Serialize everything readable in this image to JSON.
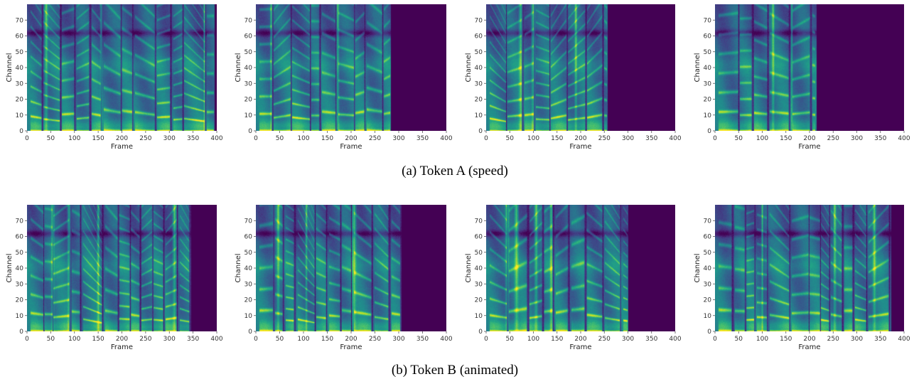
{
  "chart_data": {
    "type": "heatmap",
    "colormap": "viridis",
    "x_ticks": [
      0,
      50,
      100,
      150,
      200,
      250,
      300,
      350,
      400
    ],
    "y_ticks": [
      0,
      10,
      20,
      30,
      40,
      50,
      60,
      70
    ],
    "xlim": [
      0,
      400
    ],
    "ylim": [
      0,
      80
    ],
    "grid": false,
    "rows": [
      {
        "caption": "(a)  Token A (speed)",
        "panels": [
          {
            "xlabel": "Frame",
            "ylabel": "Channel",
            "content_end_frame": 395,
            "seed": 11
          },
          {
            "xlabel": "Frame",
            "ylabel": "Channel",
            "content_end_frame": 283,
            "seed": 23
          },
          {
            "xlabel": "Frame",
            "ylabel": "Channel",
            "content_end_frame": 257,
            "seed": 37
          },
          {
            "xlabel": "Frame",
            "ylabel": "Channel",
            "content_end_frame": 214,
            "seed": 51
          }
        ]
      },
      {
        "caption": "(b)  Token B (animated)",
        "panels": [
          {
            "xlabel": "Frame",
            "ylabel": "Channel",
            "content_end_frame": 346,
            "seed": 67
          },
          {
            "xlabel": "Frame",
            "ylabel": "Channel",
            "content_end_frame": 305,
            "seed": 79
          },
          {
            "xlabel": "Frame",
            "ylabel": "Channel",
            "content_end_frame": 300,
            "seed": 93
          },
          {
            "xlabel": "Frame",
            "ylabel": "Channel",
            "content_end_frame": 372,
            "seed": 101
          }
        ]
      }
    ]
  }
}
